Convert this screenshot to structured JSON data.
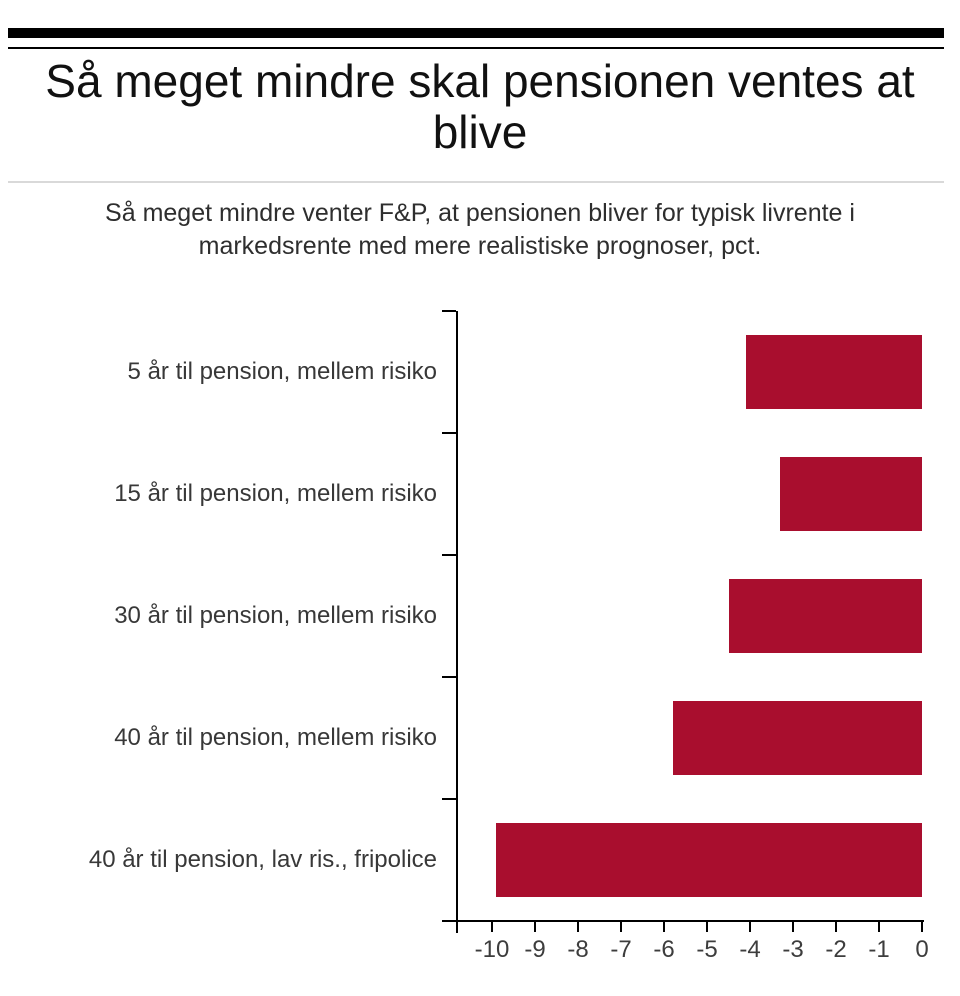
{
  "header": {
    "title_lines": [
      "Så meget mindre skal pensionen ventes at",
      "blive"
    ],
    "subtitle_lines": [
      "Så meget mindre venter F&P, at pensionen bliver for typisk livrente i",
      "markedsrente med mere realistiske prognoser, pct."
    ]
  },
  "colors": {
    "bar": "#A90E2E",
    "axis": "#000000",
    "top_rule": "#000000",
    "divider": "#d9d9d9"
  },
  "chart_data": {
    "type": "bar",
    "orientation": "horizontal",
    "title": "Så meget mindre skal pensionen ventes at blive",
    "subtitle": "Så meget mindre venter F&P, at pensionen bliver for typisk livrente i markedsrente med mere realistiske prognoser, pct.",
    "categories": [
      "5 år til pension, mellem risiko",
      "15 år til pension, mellem risiko",
      "30 år til pension, mellem risiko",
      "40 år til pension, mellem risiko",
      "40 år til pension, lav ris., fripolice"
    ],
    "values": [
      -4.1,
      -3.3,
      -4.5,
      -5.8,
      -9.9
    ],
    "unit": "pct.",
    "xlabel": "",
    "ylabel": "",
    "x_ticks": [
      -10,
      -9,
      -8,
      -7,
      -6,
      -5,
      -4,
      -3,
      -2,
      -1,
      0
    ],
    "xlim": [
      -10.8,
      0
    ],
    "grid": false,
    "legend": false,
    "bar_color": "#A90E2E"
  }
}
